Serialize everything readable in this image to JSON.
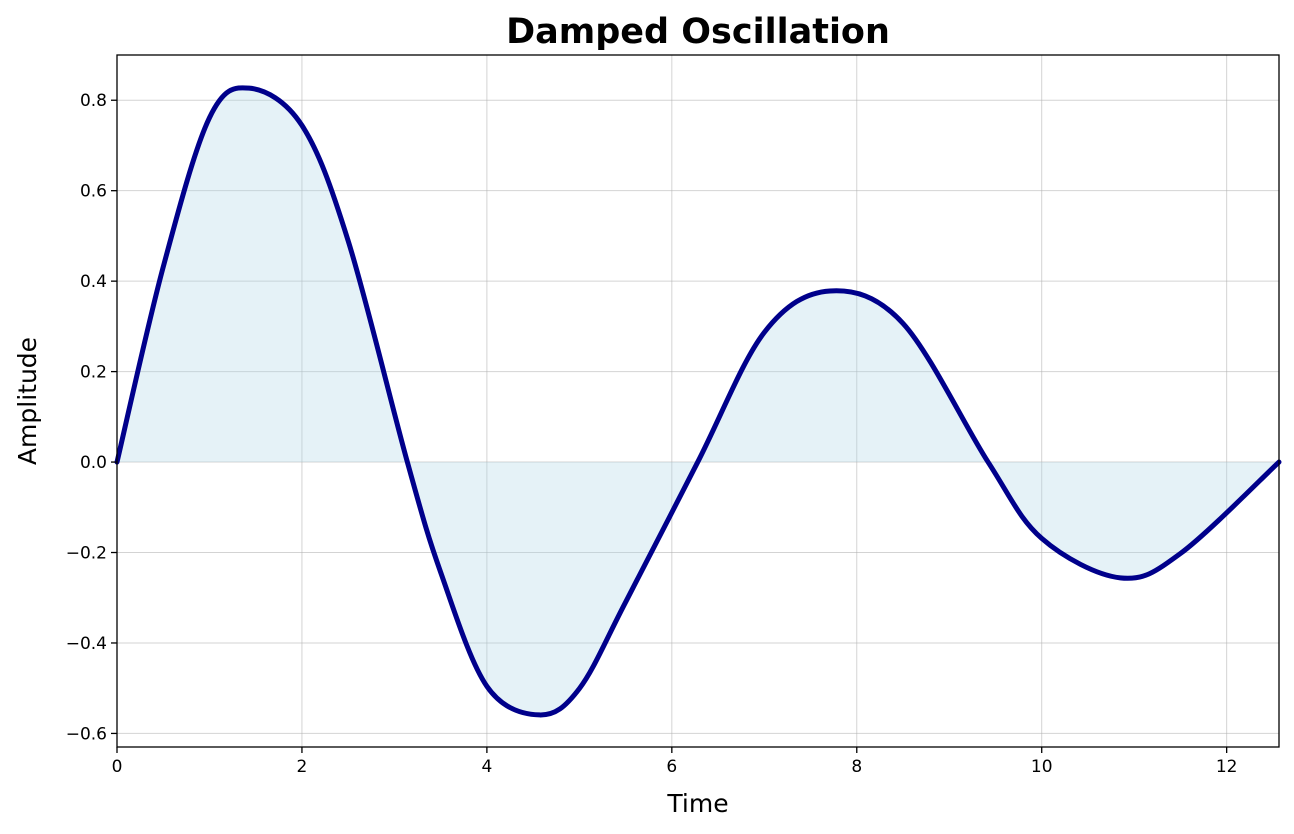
{
  "chart_data": {
    "type": "area",
    "title": "Damped Oscillation",
    "xlabel": "Time",
    "ylabel": "Amplitude",
    "xlim": [
      0,
      12.566
    ],
    "ylim": [
      -0.63,
      0.9
    ],
    "xticks": [
      0,
      2,
      4,
      6,
      8,
      10,
      12
    ],
    "xtick_labels": [
      "0",
      "2",
      "4",
      "6",
      "8",
      "10",
      "12"
    ],
    "yticks": [
      -0.6,
      -0.4,
      -0.2,
      0.0,
      0.2,
      0.4,
      0.6,
      0.8
    ],
    "ytick_labels": [
      "−0.6",
      "−0.4",
      "−0.2",
      "0.0",
      "0.2",
      "0.4",
      "0.6",
      "0.8"
    ],
    "grid": true,
    "series": [
      {
        "x": [
          0,
          0.5,
          1.0,
          1.43,
          2.0,
          2.5,
          3.14,
          3.5,
          4.0,
          4.57,
          5.0,
          5.5,
          6.28,
          7.0,
          7.71,
          8.5,
          9.42,
          10.0,
          10.85,
          11.5,
          12.566
        ],
        "y": [
          0,
          0.4315,
          0.7613,
          0.8267,
          0.7443,
          0.4891,
          0.0,
          -0.2436,
          -0.4958,
          -0.5591,
          -0.5009,
          -0.3098,
          0.0,
          0.2867,
          0.3783,
          0.3066,
          0.0,
          -0.1688,
          -0.256,
          -0.2022,
          0.0
        ],
        "line_color": "#00008b",
        "fill_color": "#add8e6"
      }
    ]
  }
}
